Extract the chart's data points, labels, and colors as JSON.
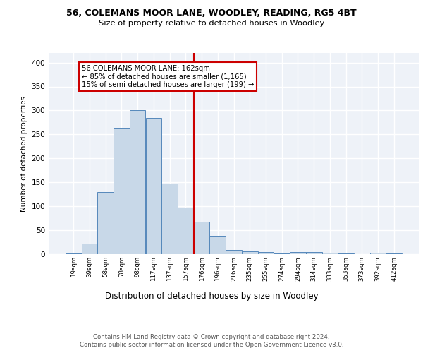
{
  "title1": "56, COLEMANS MOOR LANE, WOODLEY, READING, RG5 4BT",
  "title2": "Size of property relative to detached houses in Woodley",
  "xlabel": "Distribution of detached houses by size in Woodley",
  "ylabel": "Number of detached properties",
  "footer1": "Contains HM Land Registry data © Crown copyright and database right 2024.",
  "footer2": "Contains public sector information licensed under the Open Government Licence v3.0.",
  "bin_labels": [
    "19sqm",
    "39sqm",
    "58sqm",
    "78sqm",
    "98sqm",
    "117sqm",
    "137sqm",
    "157sqm",
    "176sqm",
    "196sqm",
    "216sqm",
    "235sqm",
    "255sqm",
    "274sqm",
    "294sqm",
    "314sqm",
    "333sqm",
    "353sqm",
    "373sqm",
    "392sqm",
    "412sqm"
  ],
  "bar_heights": [
    2,
    22,
    130,
    263,
    300,
    285,
    147,
    98,
    68,
    38,
    9,
    6,
    4,
    2,
    5,
    5,
    3,
    1,
    0,
    3,
    2
  ],
  "bar_color": "#c8d8e8",
  "bar_edge_color": "#5588bb",
  "bg_color": "#eef2f8",
  "grid_color": "#ffffff",
  "annotation_line1": "56 COLEMANS MOOR LANE: 162sqm",
  "annotation_line2": "← 85% of detached houses are smaller (1,165)",
  "annotation_line3": "15% of semi-detached houses are larger (199) →",
  "annotation_box_color": "#ffffff",
  "annotation_box_edge_color": "#cc0000",
  "vline_color": "#cc0000",
  "ylim": [
    0,
    420
  ],
  "yticks": [
    0,
    50,
    100,
    150,
    200,
    250,
    300,
    350,
    400
  ]
}
